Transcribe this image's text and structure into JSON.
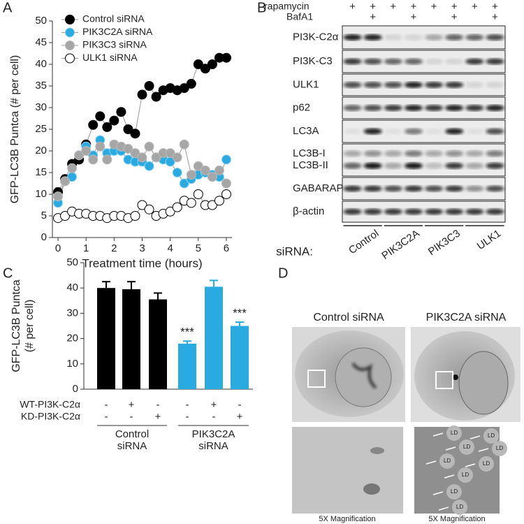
{
  "panel_labels": [
    "A",
    "B",
    "C",
    "D"
  ],
  "chart_data": [
    {
      "type": "line",
      "ylabel": "GFP-LC3B Puntca (# per cell)",
      "xlabel": "Treatment time (hours)",
      "x": [
        0,
        0.25,
        0.5,
        0.75,
        1,
        1.25,
        1.5,
        1.75,
        2,
        2.25,
        2.5,
        2.75,
        3,
        3.25,
        3.5,
        3.75,
        4,
        4.25,
        4.5,
        4.75,
        5,
        5.25,
        5.5,
        5.75,
        6
      ],
      "xlim": [
        -0.2,
        6.2
      ],
      "xticks": [
        0,
        1,
        2,
        3,
        4,
        5,
        6
      ],
      "ylim": [
        0,
        50
      ],
      "yticks": [
        0,
        5,
        10,
        15,
        20,
        25,
        30,
        35,
        40,
        45,
        50
      ],
      "legend": "upper left",
      "series": [
        {
          "name": "Control siRNA",
          "color": "#000000",
          "values": [
            10.5,
            13.5,
            17,
            18,
            21.5,
            26,
            28,
            25.5,
            27,
            29,
            25,
            24,
            33,
            35,
            32.5,
            34,
            34.5,
            34,
            34.5,
            35.5,
            40,
            39,
            40,
            41.5,
            41.5
          ]
        },
        {
          "name": "PIK3C2A siRNA",
          "color": "#29abe2",
          "values": [
            8,
            13,
            14,
            19,
            21,
            19,
            22.5,
            19.5,
            20,
            20,
            18,
            17.5,
            17.5,
            16.5,
            18.5,
            18,
            17.5,
            15,
            12.5,
            13.5,
            14.5,
            15,
            14.5,
            14,
            18
          ]
        },
        {
          "name": "PIK3C3 siRNA",
          "color": "#a6a6a6",
          "values": [
            9.5,
            13,
            16,
            19,
            20,
            18,
            21,
            18,
            21.5,
            21,
            20.5,
            19.5,
            18.5,
            21,
            18.5,
            19.5,
            19.5,
            18.5,
            21.5,
            14.5,
            16.5,
            15.5,
            14,
            15.5,
            12.5
          ]
        },
        {
          "name": "ULK1 siRNA",
          "color": "#ffffff",
          "values": [
            4.5,
            5,
            6,
            5.5,
            5.5,
            5,
            5,
            4.5,
            5,
            5,
            4.5,
            5,
            7.5,
            6.5,
            5,
            5.5,
            6,
            7,
            8.5,
            8,
            10,
            7.5,
            7.5,
            8.5,
            10
          ]
        }
      ]
    },
    {
      "type": "bar",
      "ylabel": [
        "GFP-LC3B Puntca",
        "(# per cell)"
      ],
      "values": [
        40,
        39.5,
        35.5,
        18,
        40.5,
        25
      ],
      "errors": [
        2.5,
        3,
        2.5,
        1,
        2.5,
        1.5
      ],
      "colors": [
        "#000000",
        "#000000",
        "#000000",
        "#29abe2",
        "#29abe2",
        "#29abe2"
      ],
      "significance": [
        null,
        null,
        null,
        "***",
        null,
        "***"
      ],
      "ylim": [
        0,
        50
      ],
      "yticks": [
        0,
        10,
        20,
        30,
        40,
        50
      ],
      "row_labels": [
        "WT-PI3K-C2α",
        "KD-PI3K-C2α"
      ],
      "conditions": [
        [
          "-",
          "+",
          "-",
          "-",
          "+",
          "-"
        ],
        [
          "-",
          "-",
          "+",
          "-",
          "-",
          "+"
        ]
      ],
      "groups": [
        [
          "Control",
          "siRNA"
        ],
        [
          "PIK3C2A",
          "siRNA"
        ]
      ]
    }
  ],
  "blot": {
    "treatments": [
      {
        "name": "rapamycin",
        "signs": [
          "+",
          "+",
          "+",
          "+",
          "+",
          "+",
          "+",
          "+"
        ]
      },
      {
        "name": "BafA1",
        "signs": [
          "+",
          "+",
          "+",
          "+"
        ]
      }
    ],
    "rows": [
      "PI3K-C2α",
      "PI3K-C3",
      "ULK1",
      "p62",
      "LC3A",
      "LC3B-I",
      "LC3B-II",
      "GABARAP",
      "β-actin"
    ],
    "sirna_label": "siRNA:",
    "sirna_groups": [
      "Control",
      "PIK3C2A",
      "PIK3C3",
      "ULK1"
    ]
  },
  "micrographs": {
    "titles": [
      "Control siRNA",
      "PIK3C2A siRNA"
    ],
    "captions": [
      "5X Magnification",
      "5X Magnification"
    ],
    "ld_labels": [
      "LD",
      "LD",
      "LD",
      "LD",
      "LD",
      "LD",
      "LD",
      "LD",
      "LD"
    ]
  }
}
